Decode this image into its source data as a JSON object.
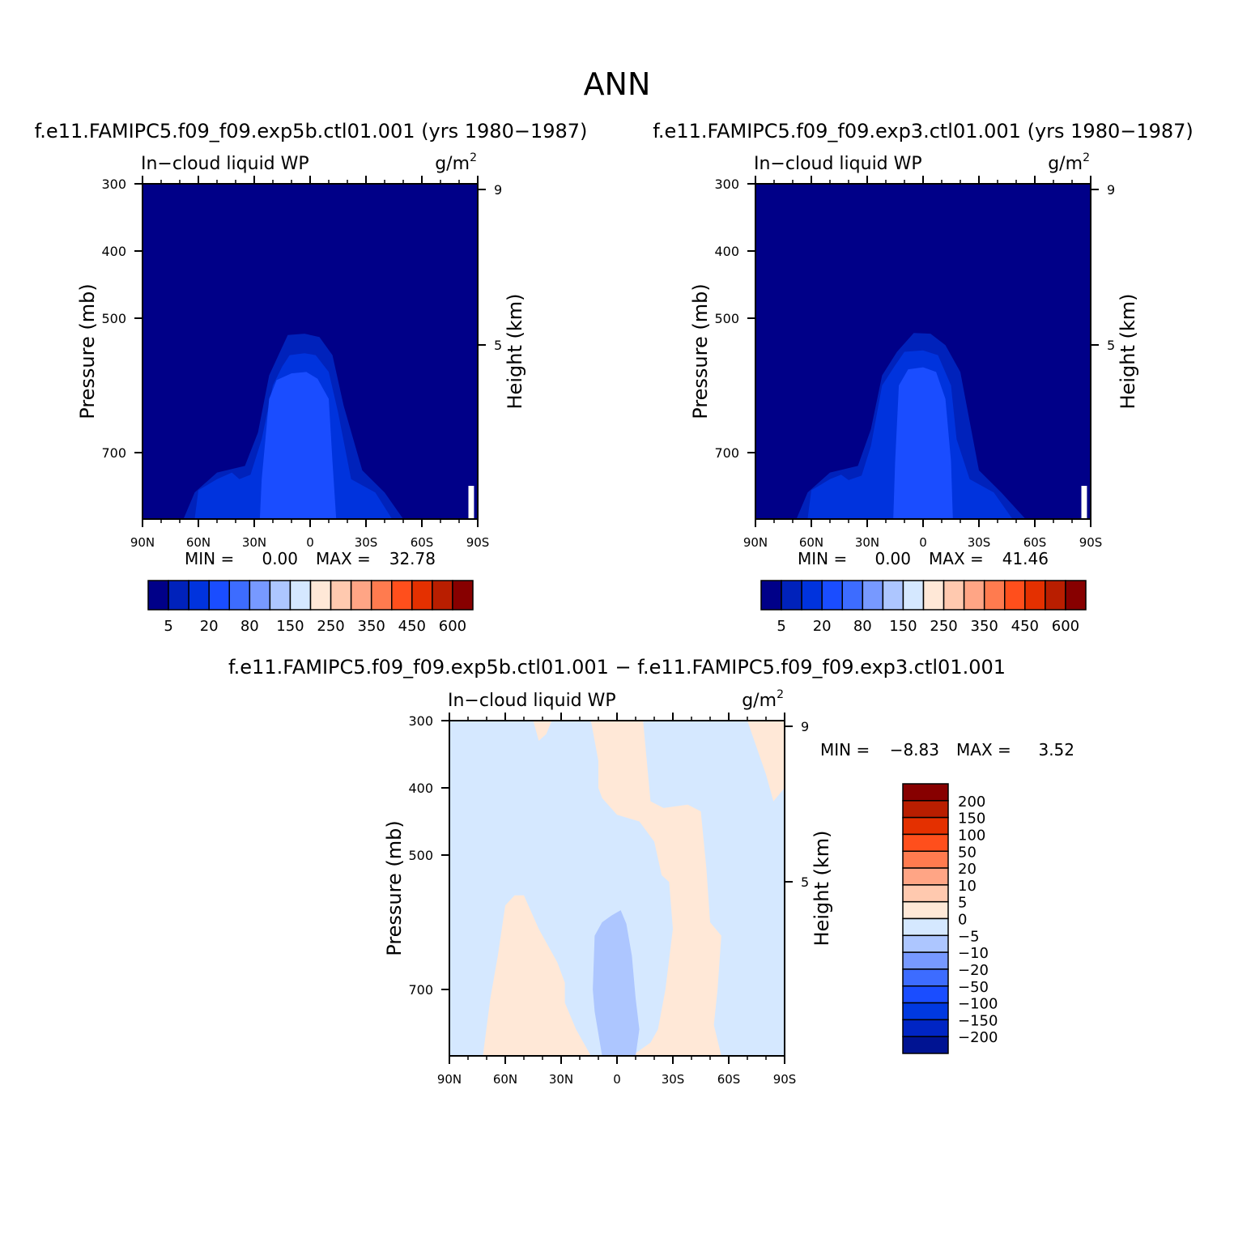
{
  "page": {
    "title": "ANN"
  },
  "colors": {
    "abs_scale": [
      "#000088",
      "#0022bb",
      "#0033dd",
      "#1a4dff",
      "#3d6cff",
      "#7799ff",
      "#adc6ff",
      "#d5e8ff",
      "#ffe8d7",
      "#ffc9af",
      "#ffa585",
      "#ff7b4f",
      "#ff4f1c",
      "#e43000",
      "#b91e00",
      "#870000"
    ],
    "diff_scale": [
      "#001392",
      "#0025c4",
      "#0039e0",
      "#1a4dff",
      "#3d6cff",
      "#7799ff",
      "#adc6ff",
      "#d5e8ff",
      "#ffe8d7",
      "#ffc9af",
      "#ffa585",
      "#ff7b4f",
      "#ff4f1c",
      "#e43000",
      "#b91e00",
      "#870000"
    ]
  },
  "chart_data": [
    {
      "type": "heatmap",
      "panel": "model1",
      "title": "f.e11.FAMIPC5.f09_f09.exp5b.ctl01.001 (yrs 1980−1987)",
      "left_label": "In−cloud liquid WP",
      "units": "g/m",
      "units_sup": "2",
      "ylabel": "Pressure (mb)",
      "y2label": "Height (km)",
      "xticks": [
        "90N",
        "60N",
        "30N",
        "0",
        "30S",
        "60S",
        "90S"
      ],
      "yticks": [
        "300",
        "400",
        "500",
        "700"
      ],
      "y2ticks": [
        "9",
        "5"
      ],
      "xlim": [
        90,
        -90
      ],
      "ylim": [
        300,
        850
      ],
      "min_label": "MIN =",
      "min_value": "0.00",
      "max_label": "MAX =",
      "max_value": "32.78",
      "colorbar_labels": [
        "5",
        "20",
        "80",
        "150",
        "250",
        "350",
        "450",
        "600"
      ],
      "field": [
        {
          "level": 1,
          "poly": [
            [
              68,
              850
            ],
            [
              62,
              790
            ],
            [
              50,
              745
            ],
            [
              35,
              730
            ],
            [
              28,
              670
            ],
            [
              22,
              585
            ],
            [
              17,
              555
            ],
            [
              12,
              525
            ],
            [
              3,
              523
            ],
            [
              -5,
              528
            ],
            [
              -12,
              555
            ],
            [
              -18,
              630
            ],
            [
              -28,
              740
            ],
            [
              -40,
              790
            ],
            [
              -50,
              850
            ]
          ]
        },
        {
          "level": 2,
          "poly": [
            [
              62,
              850
            ],
            [
              60,
              785
            ],
            [
              50,
              760
            ],
            [
              42,
              745
            ],
            [
              38,
              760
            ],
            [
              32,
              750
            ],
            [
              26,
              680
            ],
            [
              20,
              600
            ],
            [
              15,
              572
            ],
            [
              11,
              555
            ],
            [
              3,
              552
            ],
            [
              -3,
              555
            ],
            [
              -10,
              580
            ],
            [
              -15,
              640
            ],
            [
              -22,
              760
            ],
            [
              -35,
              790
            ],
            [
              -44,
              850
            ]
          ]
        },
        {
          "level": 3,
          "poly": [
            [
              27,
              850
            ],
            [
              26,
              760
            ],
            [
              22,
              620
            ],
            [
              18,
              592
            ],
            [
              10,
              582
            ],
            [
              2,
              580
            ],
            [
              -4,
              590
            ],
            [
              -10,
              620
            ],
            [
              -12,
              720
            ],
            [
              -14,
              850
            ]
          ]
        }
      ],
      "white_patch": [
        [
          -85,
          775
        ],
        [
          -88,
          775
        ],
        [
          -88,
          850
        ],
        [
          -85,
          850
        ]
      ]
    },
    {
      "type": "heatmap",
      "panel": "model2",
      "title": "f.e11.FAMIPC5.f09_f09.exp3.ctl01.001 (yrs 1980−1987)",
      "left_label": "In−cloud liquid WP",
      "units": "g/m",
      "units_sup": "2",
      "ylabel": "Pressure (mb)",
      "y2label": "Height (km)",
      "xticks": [
        "90N",
        "60N",
        "30N",
        "0",
        "30S",
        "60S",
        "90S"
      ],
      "yticks": [
        "300",
        "400",
        "500",
        "700"
      ],
      "y2ticks": [
        "9",
        "5"
      ],
      "xlim": [
        90,
        -90
      ],
      "ylim": [
        300,
        850
      ],
      "min_label": "MIN =",
      "min_value": "0.00",
      "max_label": "MAX =",
      "max_value": "41.46",
      "colorbar_labels": [
        "5",
        "20",
        "80",
        "150",
        "250",
        "350",
        "450",
        "600"
      ],
      "field": [
        {
          "level": 1,
          "poly": [
            [
              68,
              850
            ],
            [
              62,
              790
            ],
            [
              50,
              745
            ],
            [
              35,
              730
            ],
            [
              28,
              665
            ],
            [
              22,
              585
            ],
            [
              14,
              550
            ],
            [
              5,
              522
            ],
            [
              -4,
              523
            ],
            [
              -12,
              540
            ],
            [
              -20,
              580
            ],
            [
              -30,
              740
            ],
            [
              -42,
              790
            ],
            [
              -55,
              850
            ]
          ]
        },
        {
          "level": 2,
          "poly": [
            [
              62,
              850
            ],
            [
              60,
              785
            ],
            [
              50,
              760
            ],
            [
              44,
              750
            ],
            [
              40,
              762
            ],
            [
              33,
              752
            ],
            [
              28,
              690
            ],
            [
              22,
              600
            ],
            [
              15,
              570
            ],
            [
              10,
              550
            ],
            [
              0,
              548
            ],
            [
              -8,
              555
            ],
            [
              -15,
              600
            ],
            [
              -18,
              680
            ],
            [
              -25,
              760
            ],
            [
              -38,
              790
            ],
            [
              -48,
              850
            ]
          ]
        },
        {
          "level": 3,
          "poly": [
            [
              16,
              850
            ],
            [
              15,
              720
            ],
            [
              13,
              600
            ],
            [
              8,
              576
            ],
            [
              0,
              573
            ],
            [
              -7,
              580
            ],
            [
              -12,
              620
            ],
            [
              -15,
              720
            ],
            [
              -16,
              850
            ]
          ]
        }
      ],
      "white_patch": [
        [
          -85,
          775
        ],
        [
          -88,
          775
        ],
        [
          -88,
          850
        ],
        [
          -85,
          850
        ]
      ]
    },
    {
      "type": "heatmap",
      "panel": "difference",
      "title": "f.e11.FAMIPC5.f09_f09.exp5b.ctl01.001 − f.e11.FAMIPC5.f09_f09.exp3.ctl01.001",
      "left_label": "In−cloud liquid WP",
      "units": "g/m",
      "units_sup": "2",
      "ylabel": "Pressure (mb)",
      "y2label": "Height (km)",
      "xticks": [
        "90N",
        "60N",
        "30N",
        "0",
        "30S",
        "60S",
        "90S"
      ],
      "yticks": [
        "300",
        "400",
        "500",
        "700"
      ],
      "y2ticks": [
        "9",
        "5"
      ],
      "xlim": [
        90,
        -90
      ],
      "ylim": [
        300,
        850
      ],
      "min_label": "MIN =",
      "min_value": "−8.83",
      "max_label": "MAX =",
      "max_value": "3.52",
      "colorbar_labels": [
        "200",
        "150",
        "100",
        "50",
        "20",
        "10",
        "5",
        "0",
        "−5",
        "−10",
        "−20",
        "−50",
        "−100",
        "−150",
        "−200"
      ],
      "field": [
        {
          "level": 8,
          "poly": [
            [
              72,
              850
            ],
            [
              68,
              720
            ],
            [
              64,
              650
            ],
            [
              60,
              575
            ],
            [
              55,
              560
            ],
            [
              50,
              560
            ],
            [
              46,
              585
            ],
            [
              42,
              610
            ],
            [
              38,
              630
            ],
            [
              32,
              660
            ],
            [
              28,
              690
            ],
            [
              28,
              730
            ],
            [
              22,
              790
            ],
            [
              18,
              820
            ],
            [
              14,
              850
            ]
          ]
        },
        {
          "level": 8,
          "poly": [
            [
              14,
              300
            ],
            [
              -14,
              300
            ],
            [
              -16,
              360
            ],
            [
              -18,
              420
            ],
            [
              -25,
              430
            ],
            [
              -38,
              425
            ],
            [
              -45,
              435
            ],
            [
              -48,
              520
            ],
            [
              -50,
              600
            ],
            [
              -56,
              620
            ],
            [
              -54,
              700
            ],
            [
              -52,
              780
            ],
            [
              -56,
              850
            ],
            [
              -8,
              850
            ],
            [
              -18,
              820
            ],
            [
              -22,
              790
            ],
            [
              -26,
              700
            ],
            [
              -30,
              610
            ],
            [
              -28,
              540
            ],
            [
              -24,
              530
            ],
            [
              -20,
              480
            ],
            [
              -12,
              450
            ],
            [
              0,
              440
            ],
            [
              8,
              415
            ],
            [
              10,
              400
            ],
            [
              10,
              360
            ]
          ]
        },
        {
          "level": 8,
          "poly": [
            [
              45,
              300
            ],
            [
              35,
              300
            ],
            [
              38,
              320
            ],
            [
              42,
              330
            ]
          ]
        },
        {
          "level": 8,
          "poly": [
            [
              -70,
              300
            ],
            [
              -90,
              300
            ],
            [
              -90,
              400
            ],
            [
              -84,
              420
            ],
            [
              -80,
              380
            ],
            [
              -75,
              340
            ]
          ]
        },
        {
          "level": 6,
          "poly": [
            [
              8,
              850
            ],
            [
              12,
              750
            ],
            [
              13,
              700
            ],
            [
              12,
              620
            ],
            [
              8,
              600
            ],
            [
              3,
              590
            ],
            [
              -2,
              582
            ],
            [
              -5,
              602
            ],
            [
              -8,
              650
            ],
            [
              -10,
              720
            ],
            [
              -12,
              790
            ],
            [
              -10,
              850
            ]
          ]
        }
      ]
    }
  ]
}
